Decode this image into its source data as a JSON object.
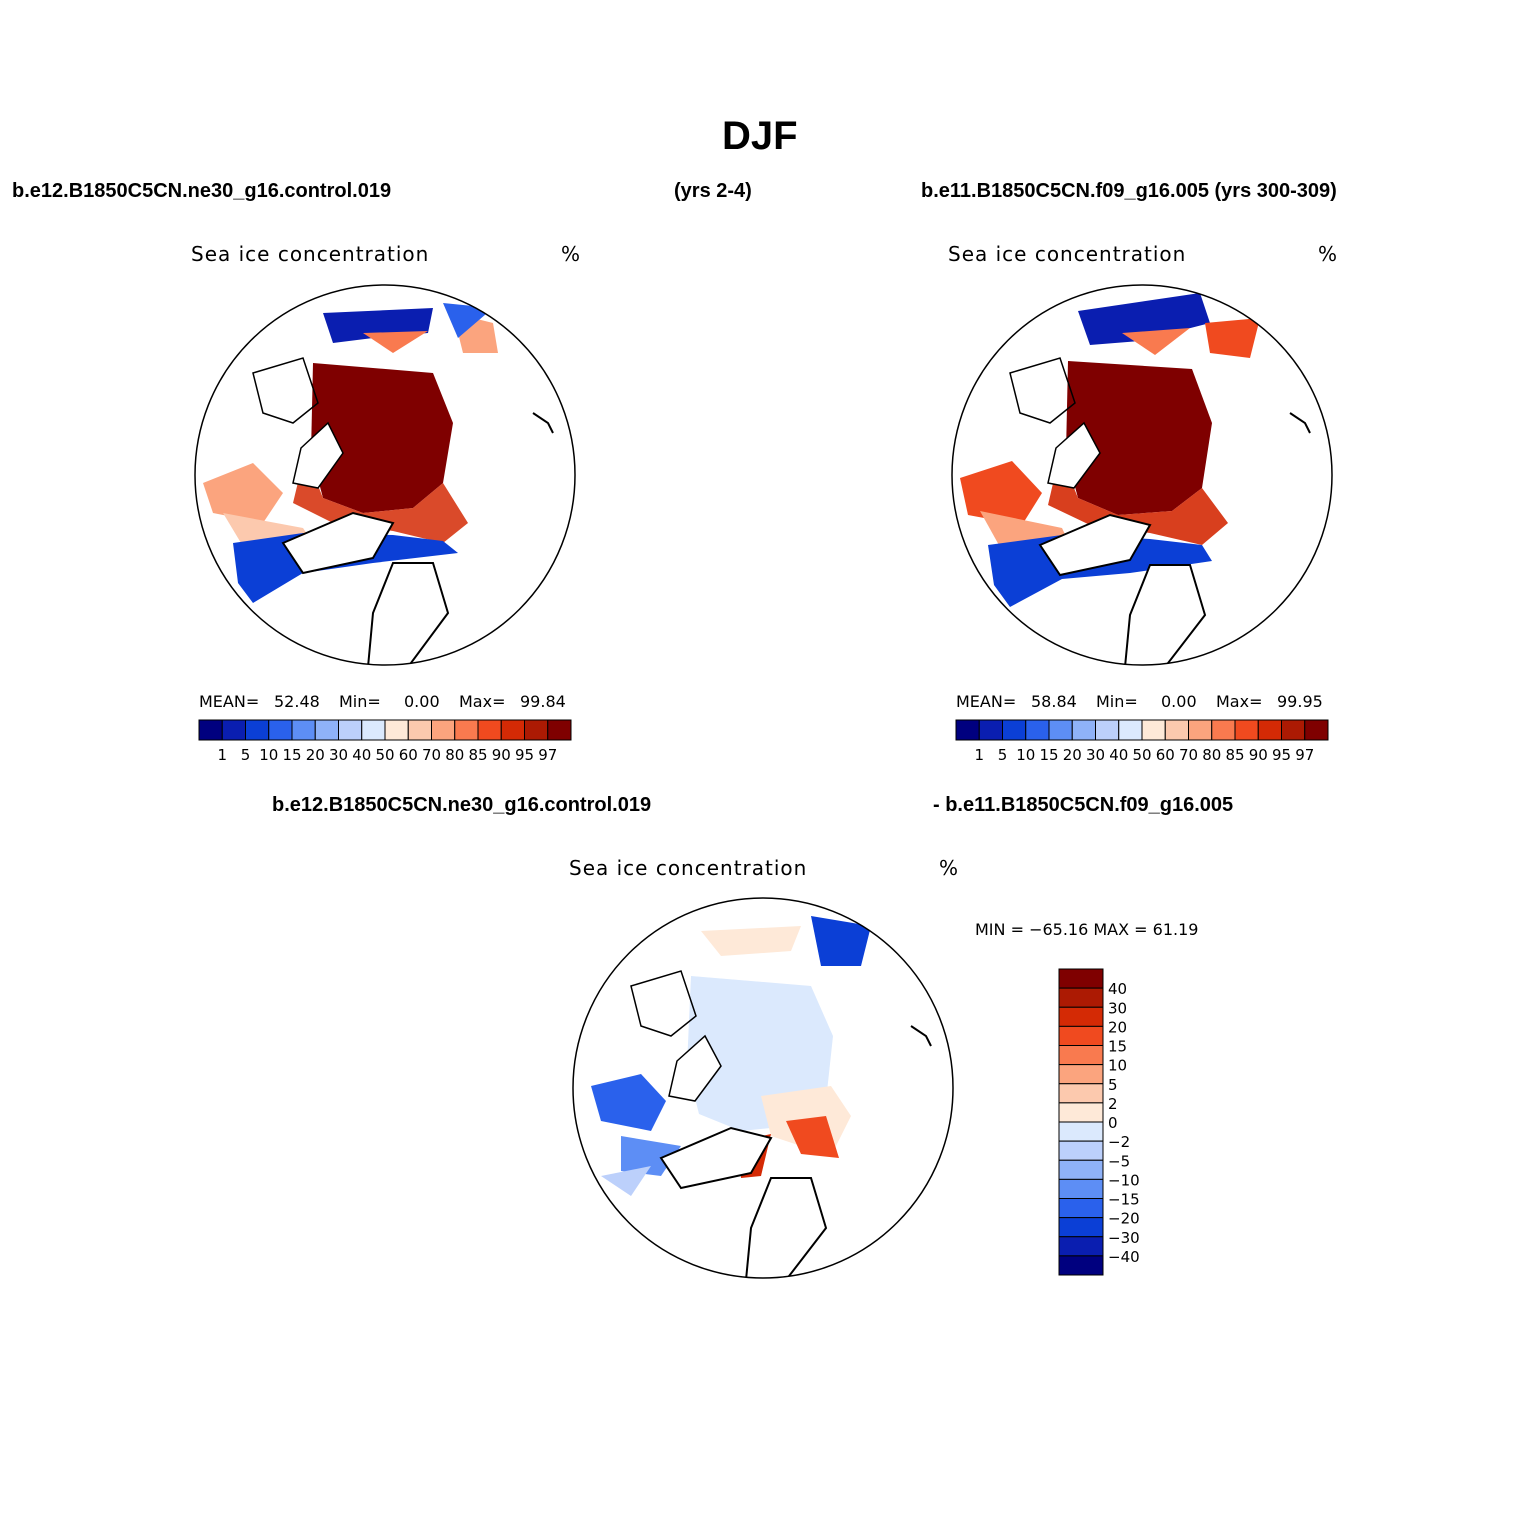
{
  "figure": {
    "title": "DJF",
    "case1": "b.e12.B1850C5CN.ne30_g16.control.019",
    "case1_years": "(yrs 2-4)",
    "case2": "b.e11.B1850C5CN.f09_g16.005 (yrs 300-309)",
    "diff_case1": "b.e12.B1850C5CN.ne30_g16.control.019",
    "diff_case2": "- b.e11.B1850C5CN.f09_g16.005"
  },
  "panels": [
    {
      "variable": "Sea ice concentration",
      "units": "%",
      "mean_label": "MEAN=",
      "mean": "52.48",
      "min_label": "Min=",
      "min": "0.00",
      "max_label": "Max=",
      "max": "99.84"
    },
    {
      "variable": "Sea ice concentration",
      "units": "%",
      "mean_label": "MEAN=",
      "mean": "58.84",
      "min_label": "Min=",
      "min": "0.00",
      "max_label": "Max=",
      "max": "99.95"
    }
  ],
  "diff_panel": {
    "variable": "Sea ice concentration",
    "units": "%",
    "minmax": "MIN = −65.16 MAX =   61.19"
  },
  "colorbar_abs": {
    "levels": [
      "1",
      "5",
      "10",
      "15",
      "20",
      "30",
      "40",
      "50",
      "60",
      "70",
      "80",
      "85",
      "90",
      "95",
      "97"
    ],
    "colors": [
      "#00007f",
      "#0a1eb0",
      "#0b3fd6",
      "#2a61ec",
      "#5d8ef5",
      "#8fb2f8",
      "#bcd0fb",
      "#dbe9fd",
      "#fee9d8",
      "#fcc9ae",
      "#fba47e",
      "#f97a4f",
      "#f04a1f",
      "#d42a05",
      "#ac1a03",
      "#7f0000"
    ]
  },
  "colorbar_diff": {
    "levels": [
      "40",
      "30",
      "20",
      "15",
      "10",
      "5",
      "2",
      "0",
      "−2",
      "−5",
      "−10",
      "−15",
      "−20",
      "−30",
      "−40"
    ],
    "colors": [
      "#7f0000",
      "#ac1a03",
      "#d42a05",
      "#f04a1f",
      "#f97a4f",
      "#fba47e",
      "#fcc9ae",
      "#fee9d8",
      "#dbe9fd",
      "#bcd0fb",
      "#8fb2f8",
      "#5d8ef5",
      "#2a61ec",
      "#0b3fd6",
      "#0a1eb0",
      "#00007f"
    ]
  }
}
